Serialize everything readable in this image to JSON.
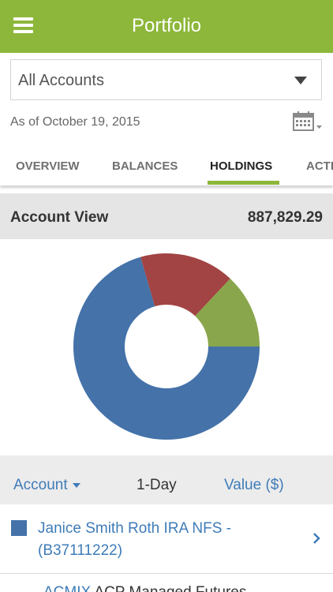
{
  "header": {
    "title": "Portfolio"
  },
  "account_select": {
    "value": "All Accounts"
  },
  "as_of": "As of October 19, 2015",
  "tabs": [
    {
      "label": "OVERVIEW",
      "active": false
    },
    {
      "label": "BALANCES",
      "active": false
    },
    {
      "label": "HOLDINGS",
      "active": true
    },
    {
      "label": "ACTI",
      "active": false
    }
  ],
  "account_view": {
    "label": "Account View",
    "value": "887,829.29"
  },
  "chart_data": {
    "type": "pie",
    "series": [
      {
        "values": [
          70.5,
          16.5,
          13.0
        ],
        "colors": [
          "#4472a9",
          "#a24444",
          "#8aa64c"
        ]
      }
    ]
  },
  "filters": {
    "account": "Account",
    "period": "1-Day",
    "value": "Value ($)"
  },
  "accounts": [
    {
      "name": "Janice Smith Roth IRA NFS -",
      "id": "(B37111222)",
      "color": "#4472a9"
    }
  ],
  "next_row": {
    "ticker": "ACMIX",
    "text": " ACP Managed Futures"
  },
  "colors": {
    "header": "#8db73a",
    "link": "#3f7cb8",
    "accent": "#8db73a"
  }
}
